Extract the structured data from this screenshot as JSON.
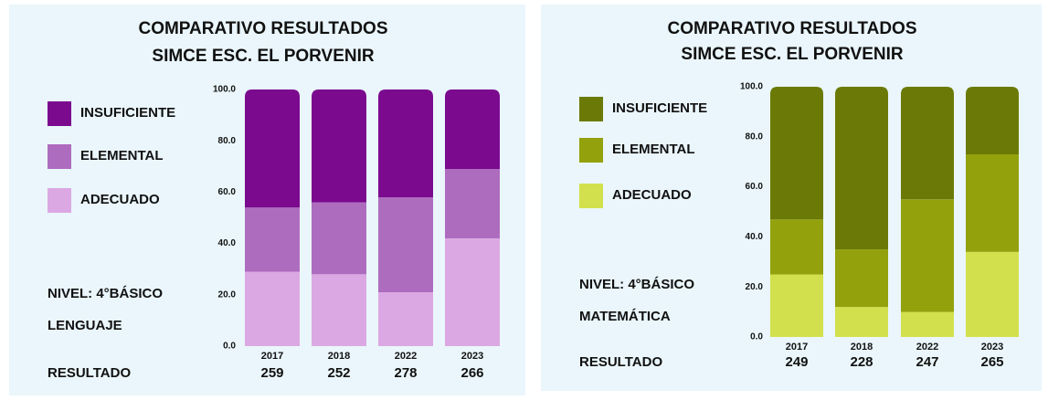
{
  "chart_data": [
    {
      "type": "bar",
      "stacked": true,
      "title": [
        "COMPARATIVO RESULTADOS",
        "SIMCE ESC. EL PORVENIR"
      ],
      "level": "NIVEL: 4°BÁSICO",
      "subject": "LENGUAJE",
      "result_label": "RESULTADO",
      "categories": [
        "2017",
        "2018",
        "2022",
        "2023"
      ],
      "scores": [
        259,
        252,
        278,
        266
      ],
      "series": [
        {
          "name": "INSUFICIENTE",
          "color": "#7b0a8f",
          "values": [
            46,
            44,
            42,
            31
          ]
        },
        {
          "name": "ELEMENTAL",
          "color": "#ae6cbf",
          "values": [
            25,
            28,
            37,
            27
          ]
        },
        {
          "name": "ADECUADO",
          "color": "#dba8e3",
          "values": [
            29,
            28,
            21,
            42
          ]
        }
      ],
      "ylim": [
        0,
        100
      ],
      "yticks": [
        {
          "value": 0,
          "label": "0.0"
        },
        {
          "value": 20,
          "label": "20.0"
        },
        {
          "value": 40,
          "label": "40.0"
        },
        {
          "value": 60,
          "label": "60.0"
        },
        {
          "value": 80,
          "label": "80.0"
        },
        {
          "value": 100,
          "label": "100.0"
        }
      ]
    },
    {
      "type": "bar",
      "stacked": true,
      "title": [
        "COMPARATIVO RESULTADOS",
        "SIMCE ESC. EL PORVENIR"
      ],
      "level": "NIVEL: 4°BÁSICO",
      "subject": "MATEMÁTICA",
      "result_label": "RESULTADO",
      "categories": [
        "2017",
        "2018",
        "2022",
        "2023"
      ],
      "scores": [
        249,
        228,
        247,
        265
      ],
      "series": [
        {
          "name": "INSUFICIENTE",
          "color": "#6b7a06",
          "values": [
            53,
            65,
            45,
            27
          ]
        },
        {
          "name": "ELEMENTAL",
          "color": "#93a10d",
          "values": [
            22,
            23,
            45,
            39
          ]
        },
        {
          "name": "ADECUADO",
          "color": "#d3e04d",
          "values": [
            25,
            12,
            10,
            34
          ]
        }
      ],
      "ylim": [
        0,
        100
      ],
      "yticks": [
        {
          "value": 0,
          "label": "0.0"
        },
        {
          "value": 20,
          "label": "20.0"
        },
        {
          "value": 40,
          "label": "40.0"
        },
        {
          "value": 60,
          "label": "60.0"
        },
        {
          "value": 80,
          "label": "80.0"
        },
        {
          "value": 100,
          "label": "100.0"
        }
      ]
    }
  ]
}
